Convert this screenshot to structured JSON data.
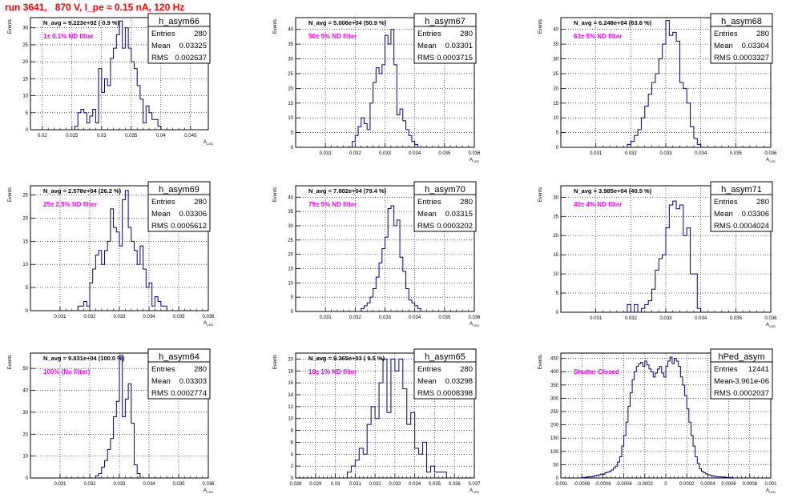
{
  "page": {
    "title": "run 3641,   870 V, I_pe ≈ 0.15 nA, 120 Hz"
  },
  "colors": {
    "histogram": "#000080",
    "annotation": "#ff00ff",
    "title": "#ff0000",
    "grid": "#000000"
  },
  "chart_data": [
    {
      "type": "bar",
      "name": "h_asym66",
      "nav_text": "N_avg = 9.223e+02 ( 0.9 %)",
      "filter_label": "1± 0.1% ND filter",
      "stats": {
        "Entries": "280",
        "Mean": "0.03325",
        "RMS": "0.002637"
      },
      "xlabel": "A_LED",
      "ylabel": "Events",
      "xlim": [
        0.018,
        0.048
      ],
      "ylim": [
        0,
        33
      ],
      "xticks": [
        0.02,
        0.025,
        0.03,
        0.035,
        0.04,
        0.045
      ],
      "xticklabels": [
        "0.02",
        "0.025",
        "0.03",
        "0.035",
        "0.04",
        "0.045"
      ],
      "yticks": [
        0,
        5,
        10,
        15,
        20,
        25,
        30
      ],
      "bin_width": 0.0005,
      "bins_x": [
        0.0255,
        0.026,
        0.0265,
        0.027,
        0.0275,
        0.028,
        0.0285,
        0.029,
        0.0295,
        0.03,
        0.0305,
        0.031,
        0.0315,
        0.032,
        0.0325,
        0.033,
        0.0335,
        0.034,
        0.0345,
        0.035,
        0.0355,
        0.036,
        0.0365,
        0.037,
        0.0375,
        0.038,
        0.0385,
        0.039,
        0.0395
      ],
      "values": [
        1,
        5,
        6,
        5,
        2,
        4,
        6,
        2,
        18,
        11,
        15,
        13,
        21,
        24,
        28,
        32,
        24,
        30,
        24,
        20,
        18,
        13,
        9,
        2,
        7,
        5,
        3,
        3,
        1
      ]
    },
    {
      "type": "bar",
      "name": "h_asym67",
      "nav_text": "N_avg = 5.006e+04 (50.9 %)",
      "filter_label": "50± 5% ND filter",
      "stats": {
        "Entries": "280",
        "Mean": "0.03301",
        "RMS": "0.0003715"
      },
      "xlabel": "A_LED",
      "ylabel": "Events",
      "xlim": [
        0.03,
        0.036
      ],
      "ylim": [
        0,
        44
      ],
      "xticks": [
        0.031,
        0.032,
        0.033,
        0.034,
        0.035,
        0.036
      ],
      "xticklabels": [
        "0.031",
        "0.032",
        "0.033",
        "0.034",
        "0.035",
        "0.036"
      ],
      "yticks": [
        0,
        5,
        10,
        15,
        20,
        25,
        30,
        35,
        40
      ],
      "bin_width": 0.0001,
      "bins_x": [
        0.0319,
        0.032,
        0.0321,
        0.0322,
        0.0323,
        0.0324,
        0.0325,
        0.0326,
        0.0327,
        0.0328,
        0.0329,
        0.033,
        0.0331,
        0.0332,
        0.0333,
        0.0334,
        0.0335,
        0.0336,
        0.0337,
        0.0338,
        0.0339,
        0.034
      ],
      "values": [
        2,
        4,
        7,
        10,
        8,
        6,
        15,
        22,
        27,
        25,
        28,
        38,
        35,
        40,
        28,
        11,
        13,
        9,
        6,
        4,
        2,
        1
      ]
    },
    {
      "type": "bar",
      "name": "h_asym68",
      "nav_text": "N_avg = 6.248e+04 (63.6 %)",
      "filter_label": "63± 5% ND filter",
      "stats": {
        "Entries": "280",
        "Mean": "0.03304",
        "RMS": "0.0003327"
      },
      "xlabel": "A_LED",
      "ylabel": "Events",
      "xlim": [
        0.03,
        0.036
      ],
      "ylim": [
        0,
        44
      ],
      "xticks": [
        0.031,
        0.032,
        0.033,
        0.034,
        0.035,
        0.036
      ],
      "xticklabels": [
        "0.031",
        "0.032",
        "0.033",
        "0.034",
        "0.035",
        "0.036"
      ],
      "yticks": [
        0,
        5,
        10,
        15,
        20,
        25,
        30,
        35,
        40
      ],
      "bin_width": 0.0001,
      "bins_x": [
        0.0319,
        0.032,
        0.0321,
        0.0322,
        0.0323,
        0.0324,
        0.0325,
        0.0326,
        0.0327,
        0.0328,
        0.0329,
        0.033,
        0.0331,
        0.0332,
        0.0333,
        0.0334,
        0.0335,
        0.0336,
        0.0337,
        0.0338,
        0.0339
      ],
      "values": [
        1,
        2,
        4,
        6,
        10,
        14,
        18,
        22,
        25,
        30,
        35,
        43,
        38,
        39,
        36,
        22,
        20,
        15,
        7,
        3,
        1
      ]
    },
    {
      "type": "bar",
      "name": "h_asym69",
      "nav_text": "N_avg = 2.578e+04 (26.2 %)",
      "filter_label": "25± 2.5% ND filter",
      "stats": {
        "Entries": "280",
        "Mean": "0.03306",
        "RMS": "0.0005612"
      },
      "xlabel": "A_LED",
      "ylabel": "Events",
      "xlim": [
        0.03,
        0.036
      ],
      "ylim": [
        0,
        27
      ],
      "xticks": [
        0.031,
        0.032,
        0.033,
        0.034,
        0.035,
        0.036
      ],
      "xticklabels": [
        "0.031",
        "0.032",
        "0.033",
        "0.034",
        "0.035",
        "0.036"
      ],
      "yticks": [
        0,
        5,
        10,
        15,
        20,
        25
      ],
      "bin_width": 0.0001,
      "bins_x": [
        0.0316,
        0.0317,
        0.0318,
        0.0319,
        0.032,
        0.0321,
        0.0322,
        0.0323,
        0.0324,
        0.0325,
        0.0326,
        0.0327,
        0.0328,
        0.0329,
        0.033,
        0.0331,
        0.0332,
        0.0333,
        0.0334,
        0.0335,
        0.0336,
        0.0337,
        0.0338,
        0.0339,
        0.034,
        0.0341,
        0.0342,
        0.0343,
        0.0344,
        0.0345
      ],
      "values": [
        1,
        1,
        2,
        1,
        6,
        9,
        12,
        13,
        10,
        13,
        15,
        22,
        18,
        17,
        14,
        24,
        26,
        18,
        15,
        13,
        10,
        14,
        9,
        5,
        6,
        1,
        3,
        2,
        1,
        1
      ]
    },
    {
      "type": "bar",
      "name": "h_asym70",
      "nav_text": "N_avg = 7.802e+04 (79.4 %)",
      "filter_label": "79± 5% ND filter",
      "stats": {
        "Entries": "280",
        "Mean": "0.03315",
        "RMS": "0.0003202"
      },
      "xlabel": "A_LED",
      "ylabel": "Events",
      "xlim": [
        0.03,
        0.036
      ],
      "ylim": [
        0,
        44
      ],
      "xticks": [
        0.031,
        0.032,
        0.033,
        0.034,
        0.035,
        0.036
      ],
      "xticklabels": [
        "0.031",
        "0.032",
        "0.033",
        "0.034",
        "0.035",
        "0.036"
      ],
      "yticks": [
        0,
        5,
        10,
        15,
        20,
        25,
        30,
        35,
        40
      ],
      "bin_width": 0.0001,
      "bins_x": [
        0.0322,
        0.0323,
        0.0324,
        0.0325,
        0.0326,
        0.0327,
        0.0328,
        0.0329,
        0.033,
        0.0331,
        0.0332,
        0.0333,
        0.0334,
        0.0335,
        0.0336,
        0.0337,
        0.0338,
        0.0339,
        0.034,
        0.0341
      ],
      "values": [
        1,
        2,
        3,
        5,
        8,
        12,
        17,
        22,
        26,
        36,
        37,
        30,
        32,
        19,
        14,
        8,
        4,
        3,
        2,
        1
      ]
    },
    {
      "type": "bar",
      "name": "h_asym71",
      "nav_text": "N_avg = 3.985e+04 (40.5 %)",
      "filter_label": "40± 4% ND filter",
      "stats": {
        "Entries": "280",
        "Mean": "0.03306",
        "RMS": "0.0004024"
      },
      "xlabel": "A_LED",
      "ylabel": "Events",
      "xlim": [
        0.03,
        0.036
      ],
      "ylim": [
        0,
        33
      ],
      "xticks": [
        0.031,
        0.032,
        0.033,
        0.034,
        0.035,
        0.036
      ],
      "xticklabels": [
        "0.031",
        "0.032",
        "0.033",
        "0.034",
        "0.035",
        "0.036"
      ],
      "yticks": [
        0,
        5,
        10,
        15,
        20,
        25,
        30
      ],
      "bin_width": 0.0001,
      "bins_x": [
        0.0319,
        0.032,
        0.0321,
        0.0322,
        0.0323,
        0.0324,
        0.0325,
        0.0326,
        0.0327,
        0.0328,
        0.0329,
        0.033,
        0.0331,
        0.0332,
        0.0333,
        0.0334,
        0.0335,
        0.0336,
        0.0337,
        0.0338,
        0.0339
      ],
      "values": [
        2,
        0,
        2,
        0,
        1,
        2,
        3,
        6,
        11,
        14,
        15,
        22,
        28,
        29,
        27,
        28,
        20,
        22,
        10,
        10,
        1
      ]
    },
    {
      "type": "bar",
      "name": "h_asym64",
      "nav_text": "N_avg = 9.831e+04 (100.0 %)",
      "filter_label": "100% (No filter)",
      "stats": {
        "Entries": "280",
        "Mean": "0.03303",
        "RMS": "0.0002774"
      },
      "xlabel": "A_LED",
      "ylabel": "Events",
      "xlim": [
        0.03,
        0.036
      ],
      "ylim": [
        0,
        57
      ],
      "xticks": [
        0.031,
        0.032,
        0.033,
        0.034,
        0.035,
        0.036
      ],
      "xticklabels": [
        "0.031",
        "0.032",
        "0.033",
        "0.034",
        "0.035",
        "0.036"
      ],
      "yticks": [
        0,
        10,
        20,
        30,
        40,
        50
      ],
      "bin_width": 0.0001,
      "bins_x": [
        0.0322,
        0.0323,
        0.0324,
        0.0325,
        0.0326,
        0.0327,
        0.0328,
        0.0329,
        0.033,
        0.0331,
        0.0332,
        0.0333,
        0.0334,
        0.0335,
        0.0336
      ],
      "values": [
        1,
        2,
        5,
        8,
        13,
        18,
        28,
        35,
        56,
        28,
        36,
        43,
        25,
        6,
        2
      ]
    },
    {
      "type": "bar",
      "name": "h_asym65",
      "nav_text": "N_avg = 9.365e+03 ( 9.5 %)",
      "filter_label": "10± 1% ND filter",
      "stats": {
        "Entries": "280",
        "Mean": "0.03298",
        "RMS": "0.0008398"
      },
      "xlabel": "A_LED",
      "ylabel": "Events",
      "xlim": [
        0.028,
        0.037
      ],
      "ylim": [
        0,
        21
      ],
      "xticks": [
        0.028,
        0.029,
        0.03,
        0.031,
        0.032,
        0.033,
        0.034,
        0.035,
        0.036,
        0.037
      ],
      "xticklabels": [
        "0.028",
        "0.029",
        "0.03",
        "0.031",
        "0.032",
        "0.033",
        "0.034",
        "0.035",
        "0.036",
        "0.037"
      ],
      "yticks": [
        0,
        2,
        4,
        6,
        8,
        10,
        12,
        14,
        16,
        18,
        20
      ],
      "bin_width": 0.0002,
      "bins_x": [
        0.0306,
        0.0308,
        0.031,
        0.0312,
        0.0314,
        0.0316,
        0.0318,
        0.032,
        0.0322,
        0.0324,
        0.0326,
        0.0328,
        0.033,
        0.0332,
        0.0334,
        0.0336,
        0.0338,
        0.034,
        0.0342,
        0.0344,
        0.0346,
        0.0348,
        0.035,
        0.0352,
        0.0354
      ],
      "values": [
        1,
        2,
        3,
        5,
        4,
        9,
        12,
        10,
        16,
        20,
        11,
        20,
        18,
        20,
        15,
        9,
        11,
        5,
        4,
        6,
        1,
        2,
        1,
        1,
        1
      ]
    },
    {
      "type": "bar",
      "name": "hPed_asym",
      "nav_text": "",
      "filter_label": "Shutter Closed",
      "stats": {
        "Entries": "12441",
        "Mean": "-3.961e-06",
        "RMS": "0.0002037"
      },
      "xlabel": "A_LED",
      "ylabel": "Events",
      "xlim": [
        -0.001,
        0.001
      ],
      "ylim": [
        0,
        470
      ],
      "xticks": [
        -0.001,
        -0.0008,
        -0.0006,
        -0.0004,
        -0.0002,
        0,
        0.0002,
        0.0004,
        0.0006,
        0.0008,
        0.001
      ],
      "xticklabels": [
        "-0.001",
        "-0.0008",
        "-0.0006",
        "-0.0004",
        "-0.0002",
        "0",
        "0.0002",
        "0.0004",
        "0.0006",
        "0.0008",
        "0.001"
      ],
      "yticks": [
        0,
        50,
        100,
        150,
        200,
        250,
        300,
        350,
        400,
        450
      ],
      "bin_width": 2e-05,
      "bins_x": [
        -0.0008,
        -0.00078,
        -0.00076,
        -0.00074,
        -0.00072,
        -0.0007,
        -0.00068,
        -0.00066,
        -0.00064,
        -0.00062,
        -0.0006,
        -0.00058,
        -0.00056,
        -0.00054,
        -0.00052,
        -0.0005,
        -0.00048,
        -0.00046,
        -0.00044,
        -0.00042,
        -0.0004,
        -0.00038,
        -0.00036,
        -0.00034,
        -0.00032,
        -0.0003,
        -0.00028,
        -0.00026,
        -0.00024,
        -0.00022,
        -0.0002,
        -0.00018,
        -0.00016,
        -0.00014,
        -0.00012,
        -0.0001,
        -8e-05,
        -6e-05,
        -4e-05,
        -2e-05,
        0,
        2e-05,
        4e-05,
        6e-05,
        8e-05,
        0.0001,
        0.00012,
        0.00014,
        0.00016,
        0.00018,
        0.0002,
        0.00022,
        0.00024,
        0.00026,
        0.00028,
        0.0003,
        0.00032,
        0.00034,
        0.00036,
        0.00038,
        0.0004,
        0.00042,
        0.00044,
        0.00046,
        0.00048,
        0.0005,
        0.00052,
        0.00054,
        0.00056,
        0.00058,
        0.0006,
        0.00062
      ],
      "values": [
        2,
        2,
        3,
        5,
        4,
        6,
        8,
        10,
        12,
        15,
        14,
        20,
        22,
        25,
        30,
        38,
        45,
        60,
        80,
        120,
        160,
        210,
        270,
        320,
        370,
        400,
        420,
        430,
        435,
        420,
        440,
        425,
        410,
        400,
        380,
        395,
        410,
        420,
        395,
        380,
        420,
        440,
        455,
        430,
        450,
        440,
        420,
        380,
        350,
        310,
        260,
        210,
        160,
        120,
        80,
        55,
        35,
        25,
        20,
        15,
        12,
        10,
        8,
        6,
        5,
        4,
        4,
        3,
        3,
        2,
        2,
        2
      ]
    }
  ]
}
